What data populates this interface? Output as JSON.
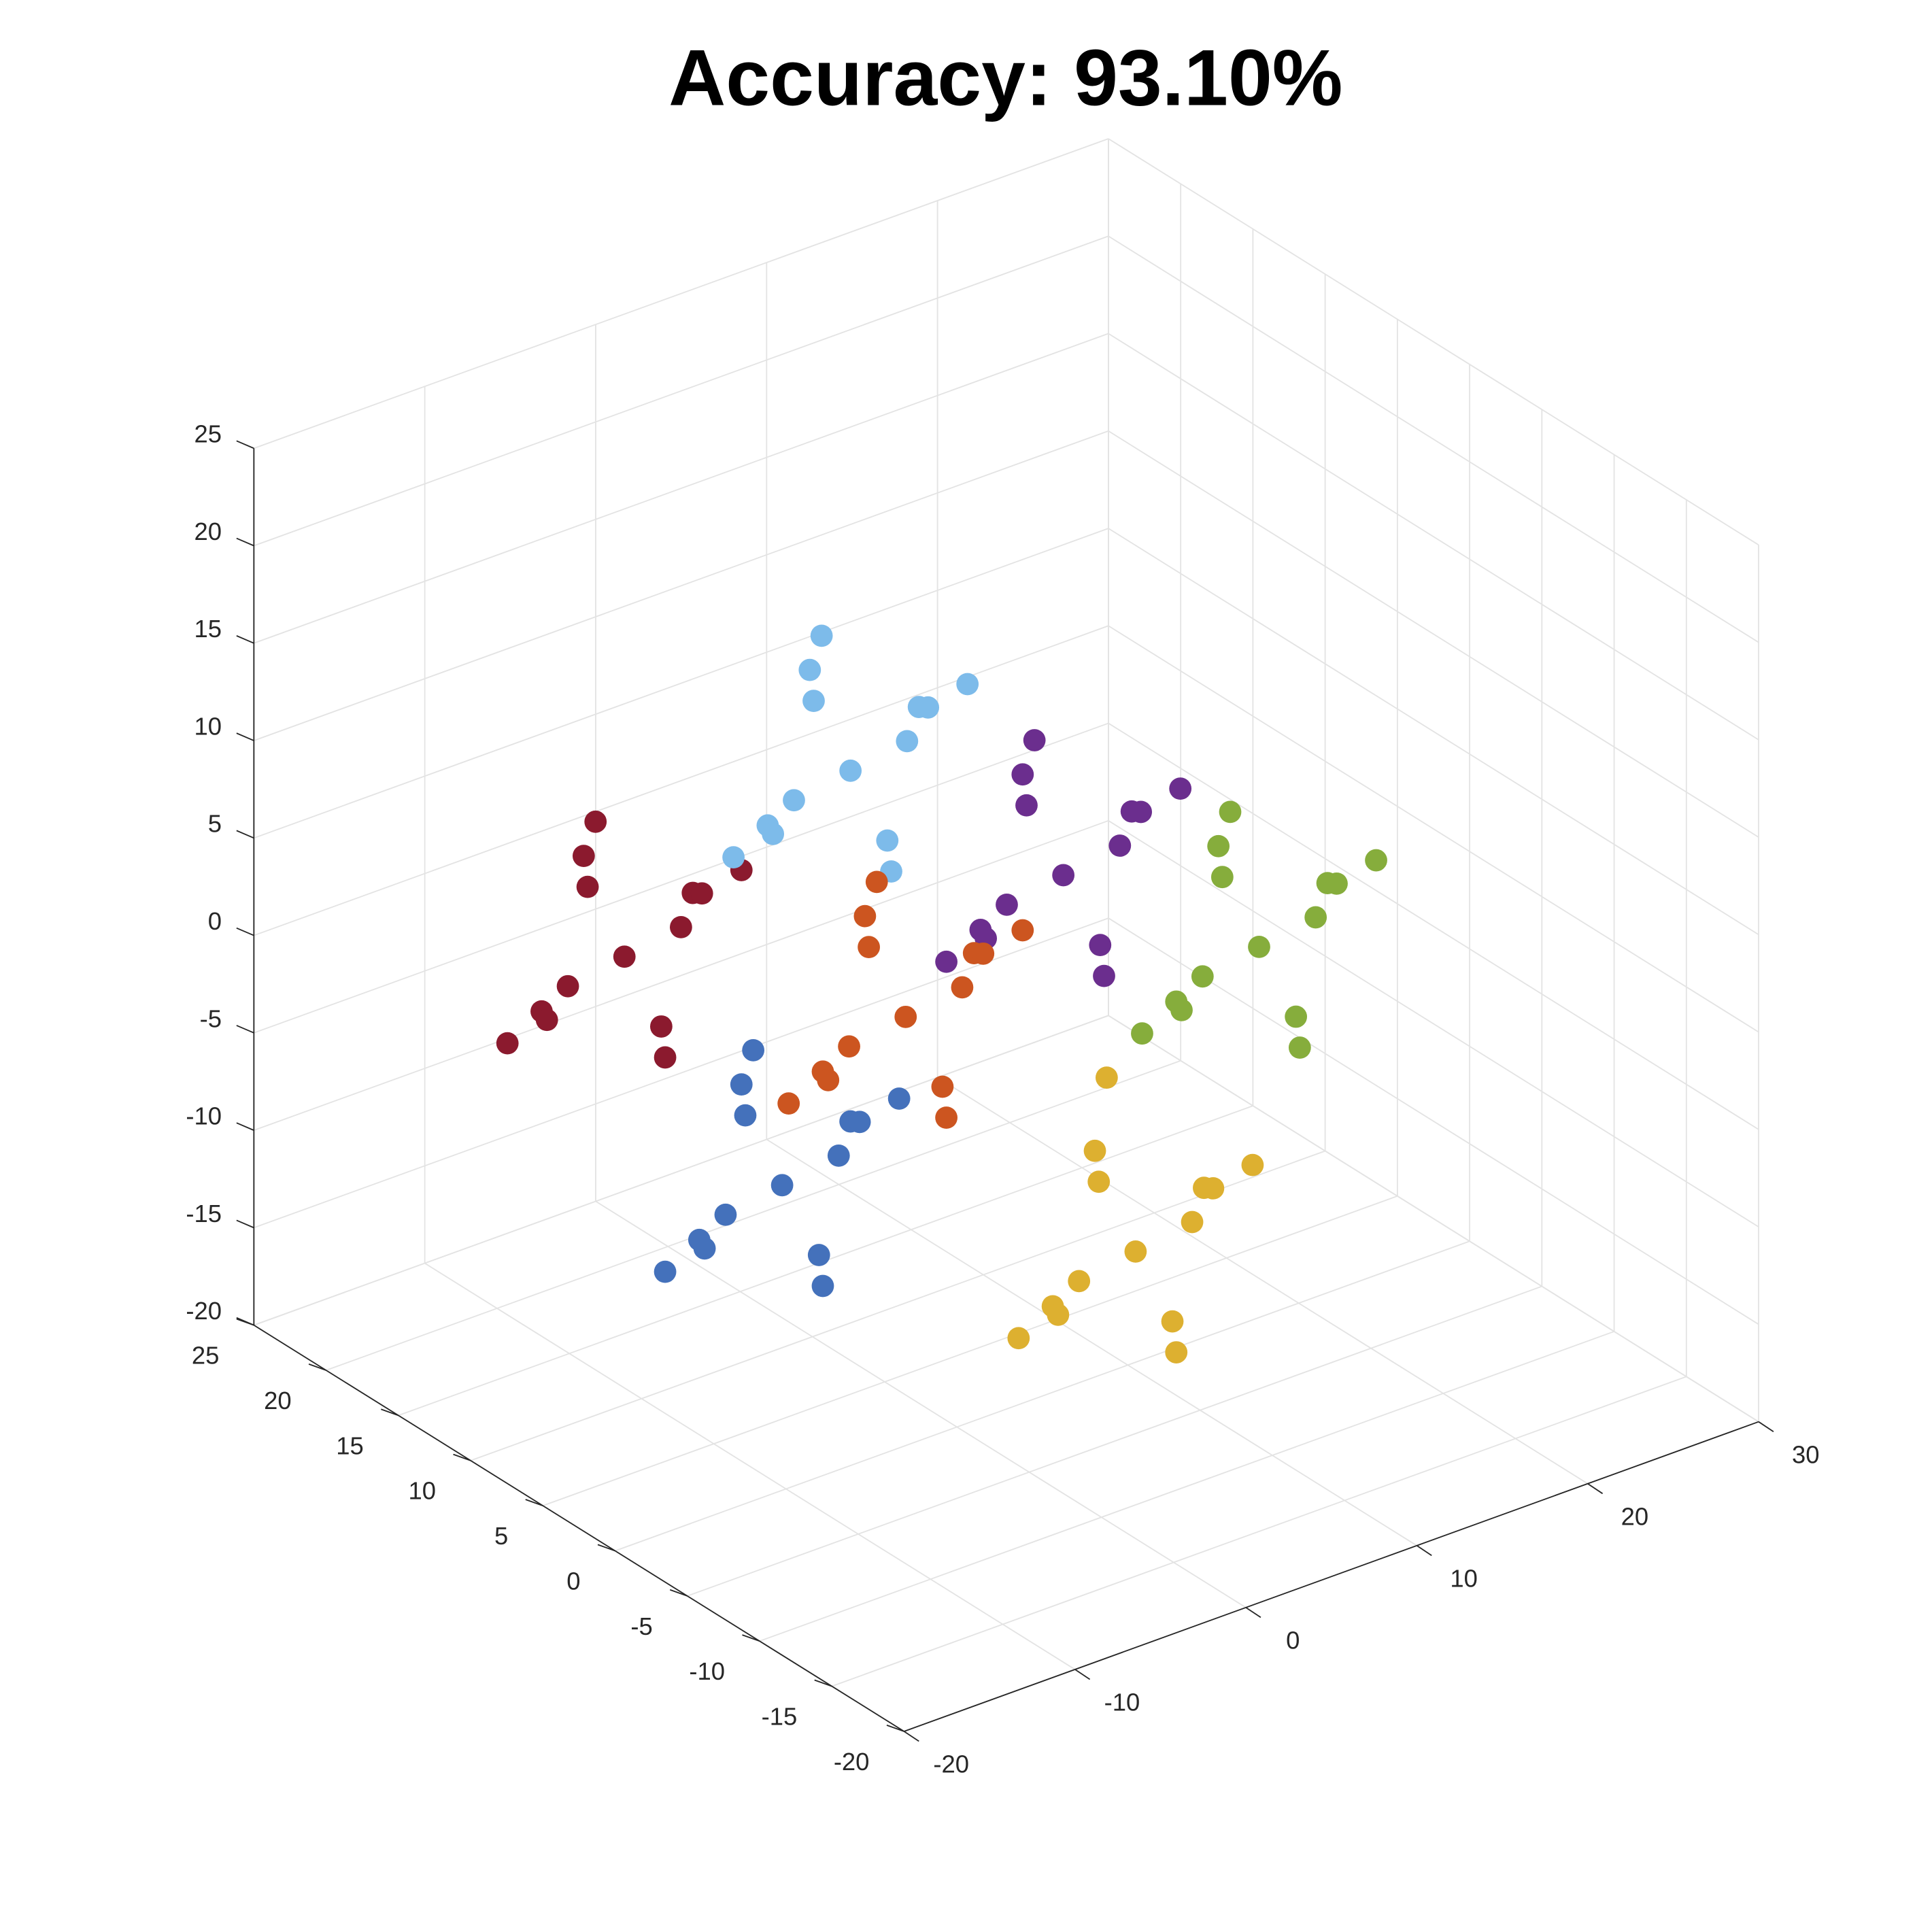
{
  "chart_data": {
    "type": "scatter",
    "title": "Accuracy: 93.10%",
    "xlim": [
      -20,
      30
    ],
    "xticks": [
      -20,
      -10,
      0,
      10,
      20,
      30
    ],
    "ylim": [
      -20,
      25
    ],
    "yticks": [
      -20,
      -15,
      -10,
      -5,
      0,
      5,
      10,
      15,
      20,
      25
    ],
    "zlim": [
      -20,
      25
    ],
    "zticks": [
      -20,
      -15,
      -10,
      -5,
      0,
      5,
      10,
      15,
      20,
      25
    ],
    "grid": true,
    "series": [
      {
        "color": "#8b1a2e",
        "x": [
          -11,
          -7,
          -15,
          -9,
          -13,
          -6,
          -16,
          -10,
          -12,
          -8,
          -14,
          -5,
          -17,
          -11
        ],
        "y": [
          10,
          10,
          11,
          7,
          13,
          12,
          8,
          14,
          6,
          11,
          9,
          9,
          11,
          12
        ],
        "z": [
          3,
          5,
          1,
          7,
          -1,
          2,
          4,
          6,
          0,
          -2,
          8,
          6,
          0,
          9
        ]
      },
      {
        "color": "#7dbbea",
        "x": [
          -2,
          2,
          -6,
          0,
          -4,
          3,
          -7,
          -1,
          -3,
          1,
          -5,
          4,
          -8,
          -2
        ],
        "y": [
          5,
          5,
          6,
          2,
          8,
          7,
          3,
          9,
          1,
          6,
          4,
          4,
          6,
          7
        ],
        "z": [
          12,
          14,
          10,
          16,
          8,
          11,
          13,
          15,
          9,
          7,
          17,
          15,
          9,
          18
        ]
      },
      {
        "color": "#86ad3c",
        "x": [
          5,
          9,
          1,
          7,
          3,
          10,
          0,
          6,
          4,
          8,
          2,
          11,
          -1,
          5
        ],
        "y": [
          -15,
          -15,
          -14,
          -18,
          -12,
          -13,
          -17,
          -11,
          -19,
          -14,
          -16,
          -16,
          -14,
          -13
        ],
        "z": [
          10,
          12,
          8,
          14,
          6,
          9,
          11,
          13,
          7,
          5,
          15,
          13,
          7,
          16
        ]
      },
      {
        "color": "#6b2e8e",
        "x": [
          2,
          6,
          -2,
          4,
          0,
          7,
          -3,
          3,
          1,
          5,
          -1,
          8,
          -4,
          2
        ],
        "y": [
          -5,
          -5,
          -4,
          -8,
          -2,
          -3,
          -7,
          -1,
          -9,
          -4,
          -6,
          -6,
          -4,
          -3
        ],
        "z": [
          10,
          12,
          8,
          14,
          6,
          9,
          11,
          13,
          7,
          5,
          15,
          13,
          7,
          16
        ]
      },
      {
        "color": "#cc5520",
        "x": [
          -3,
          1,
          -7,
          -1,
          -5,
          2,
          -8,
          -2,
          -4,
          0,
          -6,
          3,
          -9,
          -3
        ],
        "y": [
          0,
          0,
          1,
          -3,
          3,
          2,
          -2,
          4,
          -4,
          1,
          -1,
          -1,
          1,
          2
        ],
        "z": [
          2,
          4,
          0,
          6,
          -2,
          1,
          3,
          5,
          -1,
          -3,
          7,
          5,
          -1,
          8
        ]
      },
      {
        "color": "#4471bb",
        "x": [
          -6,
          -2,
          -10,
          -4,
          -8,
          -1,
          -11,
          -5,
          -7,
          -3,
          -9,
          0,
          -12,
          -6
        ],
        "y": [
          5,
          5,
          6,
          2,
          8,
          7,
          3,
          9,
          1,
          6,
          4,
          4,
          6,
          7
        ],
        "z": [
          -8,
          -6,
          -10,
          -4,
          -12,
          -9,
          -7,
          -5,
          -11,
          -13,
          -3,
          -5,
          -11,
          -2
        ]
      },
      {
        "color": "#ddb030",
        "x": [
          2,
          6,
          -2,
          4,
          0,
          7,
          -3,
          3,
          1,
          5,
          -1,
          8,
          -4,
          2
        ],
        "y": [
          -10,
          -10,
          -9,
          -13,
          -7,
          -8,
          -12,
          -6,
          -14,
          -9,
          -11,
          -11,
          -9,
          -8
        ],
        "z": [
          -7,
          -5,
          -9,
          -3,
          -11,
          -8,
          -6,
          -4,
          -10,
          -12,
          -2,
          -4,
          -10,
          1
        ]
      }
    ]
  }
}
